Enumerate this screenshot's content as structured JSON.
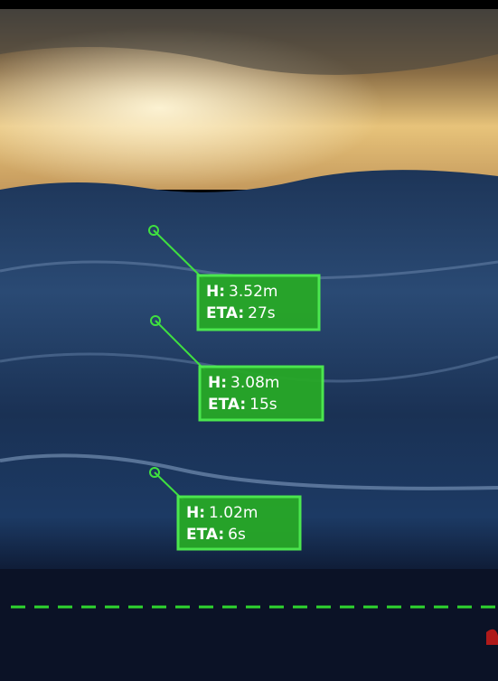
{
  "markers": [
    {
      "height_label": "H:",
      "height": "3.52m",
      "eta_label": "ETA:",
      "eta": "27s"
    },
    {
      "height_label": "H:",
      "height": "3.08m",
      "eta_label": "ETA:",
      "eta": "15s"
    },
    {
      "height_label": "H:",
      "height": "1.02m",
      "eta_label": "ETA:",
      "eta": "6s"
    }
  ]
}
